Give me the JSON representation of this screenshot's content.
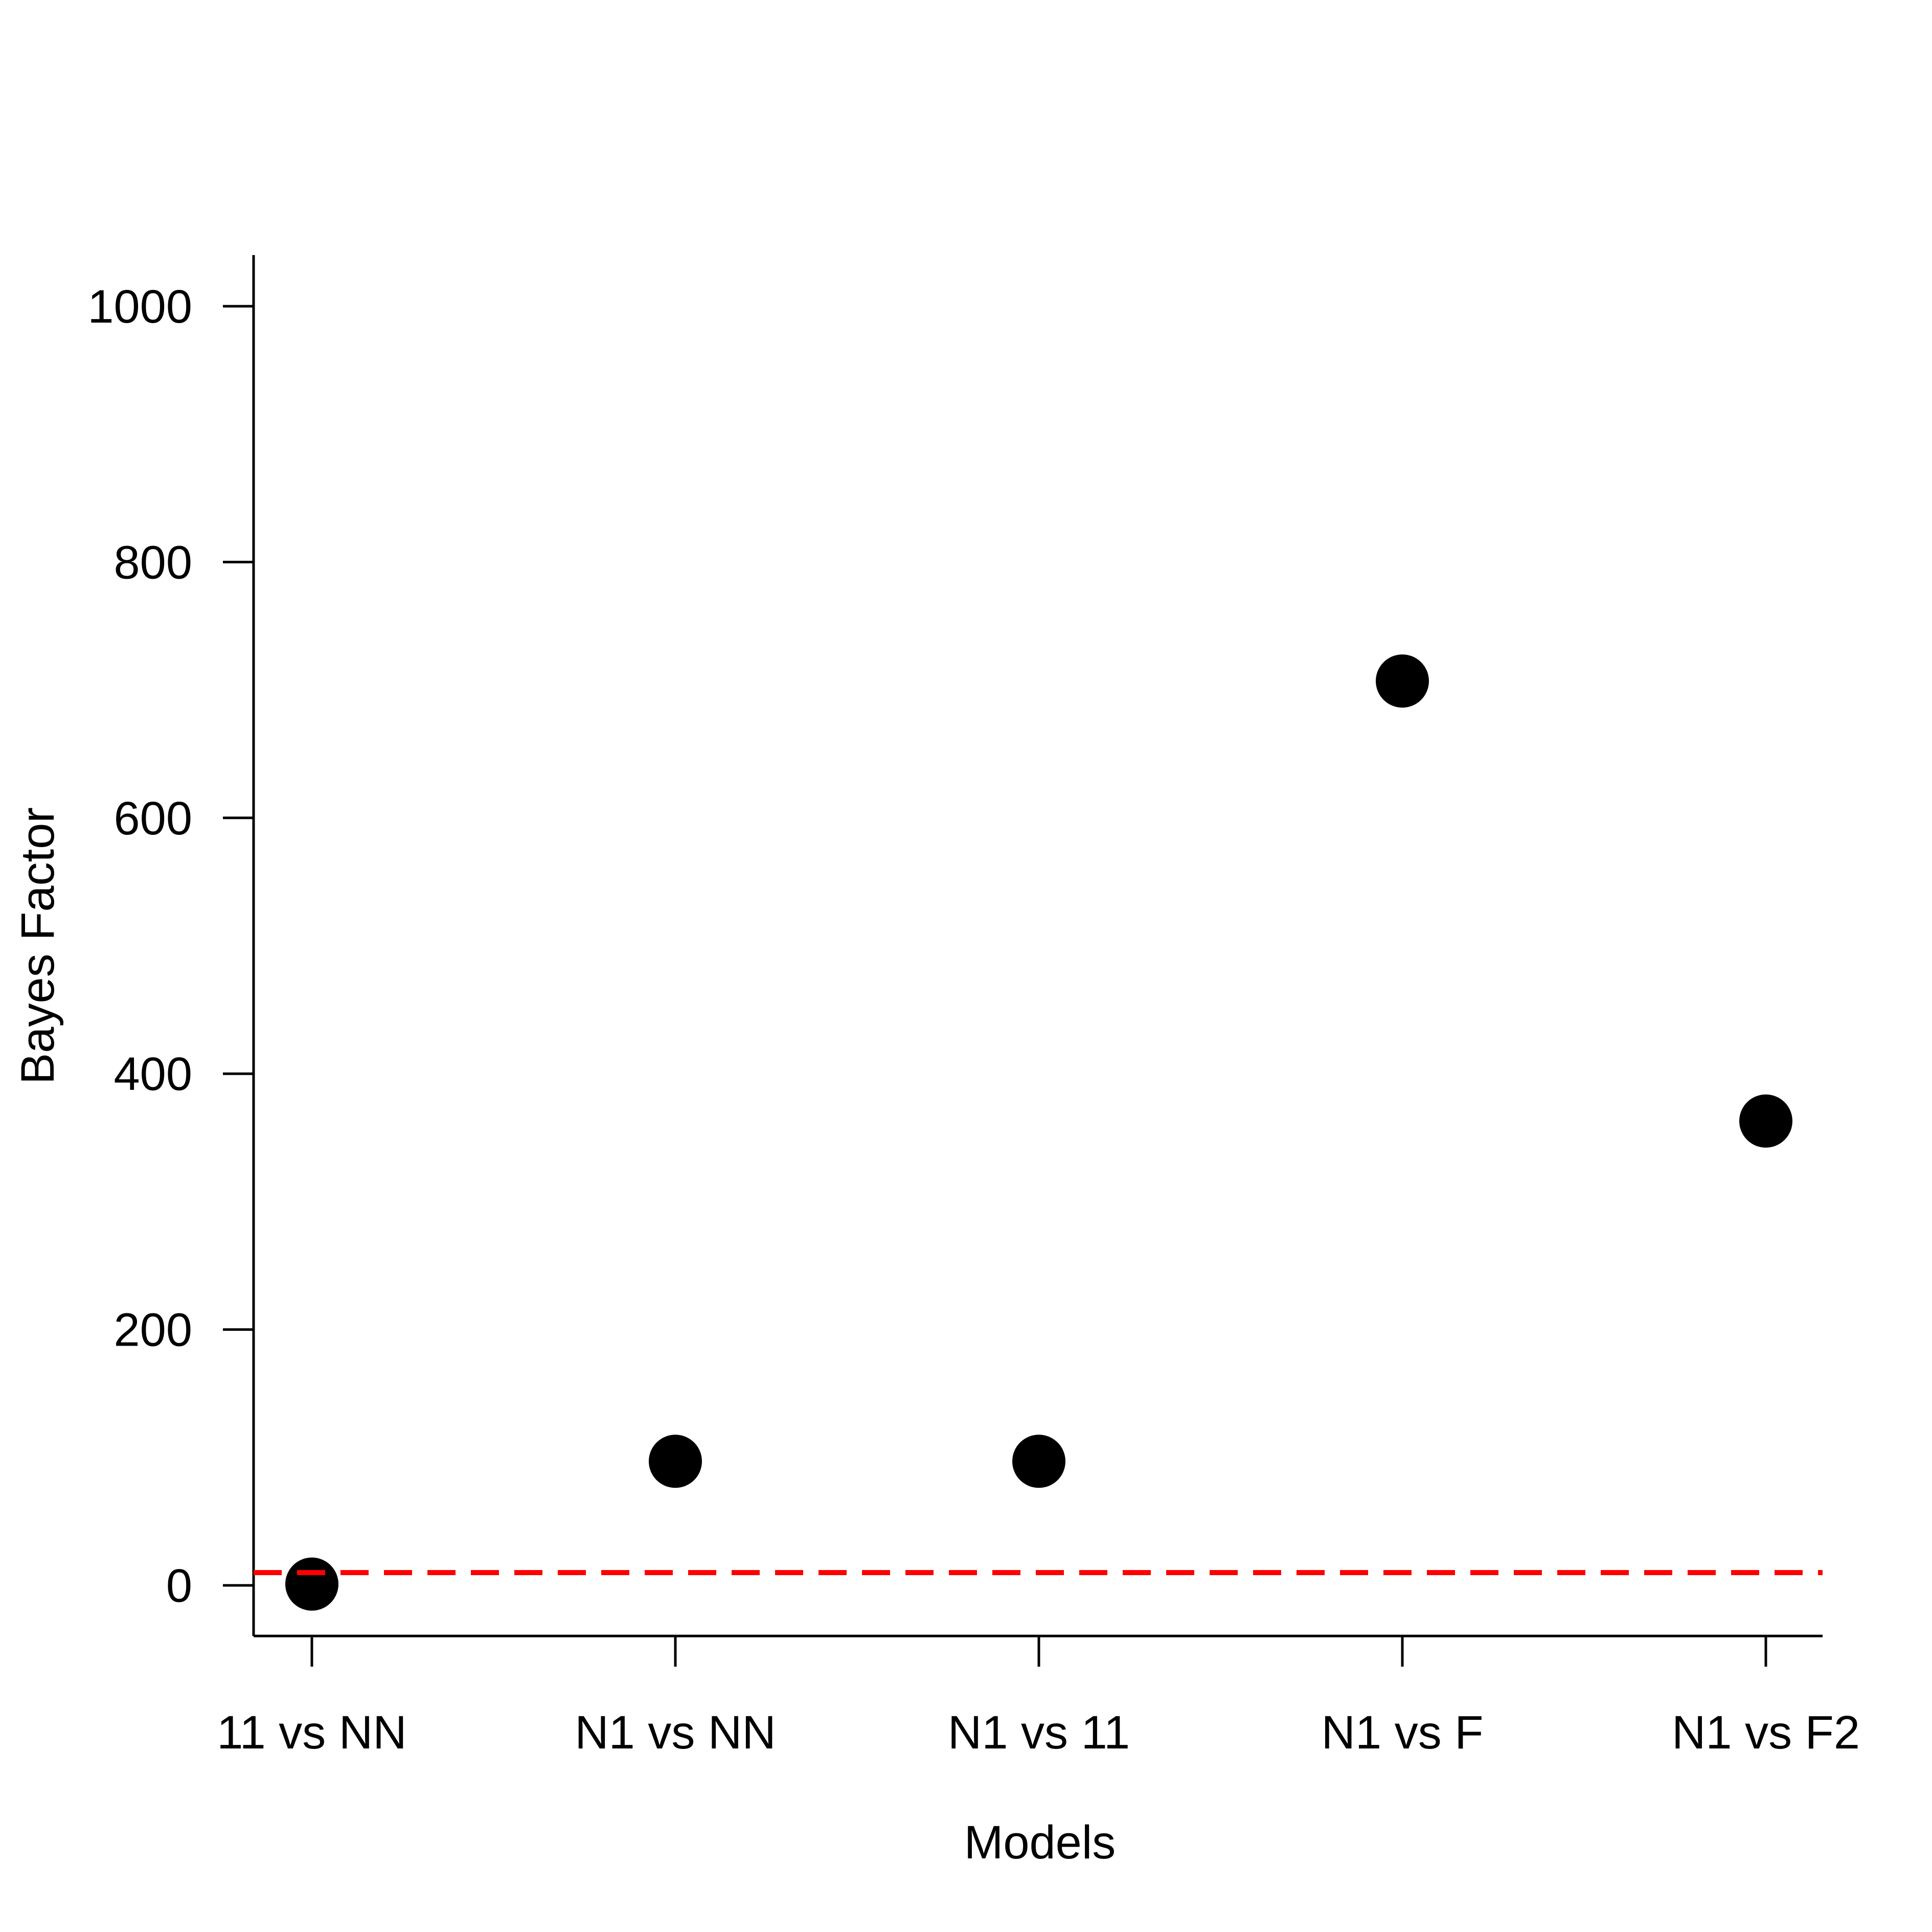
{
  "chart_data": {
    "type": "scatter",
    "title": "",
    "xlabel": "Models",
    "ylabel": "Bayes Factor",
    "categories": [
      "11 vs NN",
      "N1 vs NN",
      "N1 vs 11",
      "N1 vs F",
      "N1 vs F2"
    ],
    "values": [
      1,
      97,
      97,
      707,
      363
    ],
    "ylim": [
      -40,
      1040
    ],
    "yticks": [
      0,
      200,
      400,
      600,
      800,
      1000
    ],
    "yticks_labels": [
      "0",
      "200",
      "400",
      "600",
      "800",
      "1000"
    ],
    "reference_line": {
      "y": 10,
      "color": "#ff0000",
      "style": "dashed"
    },
    "point_color": "#000000",
    "grid": false,
    "legend": "none"
  }
}
